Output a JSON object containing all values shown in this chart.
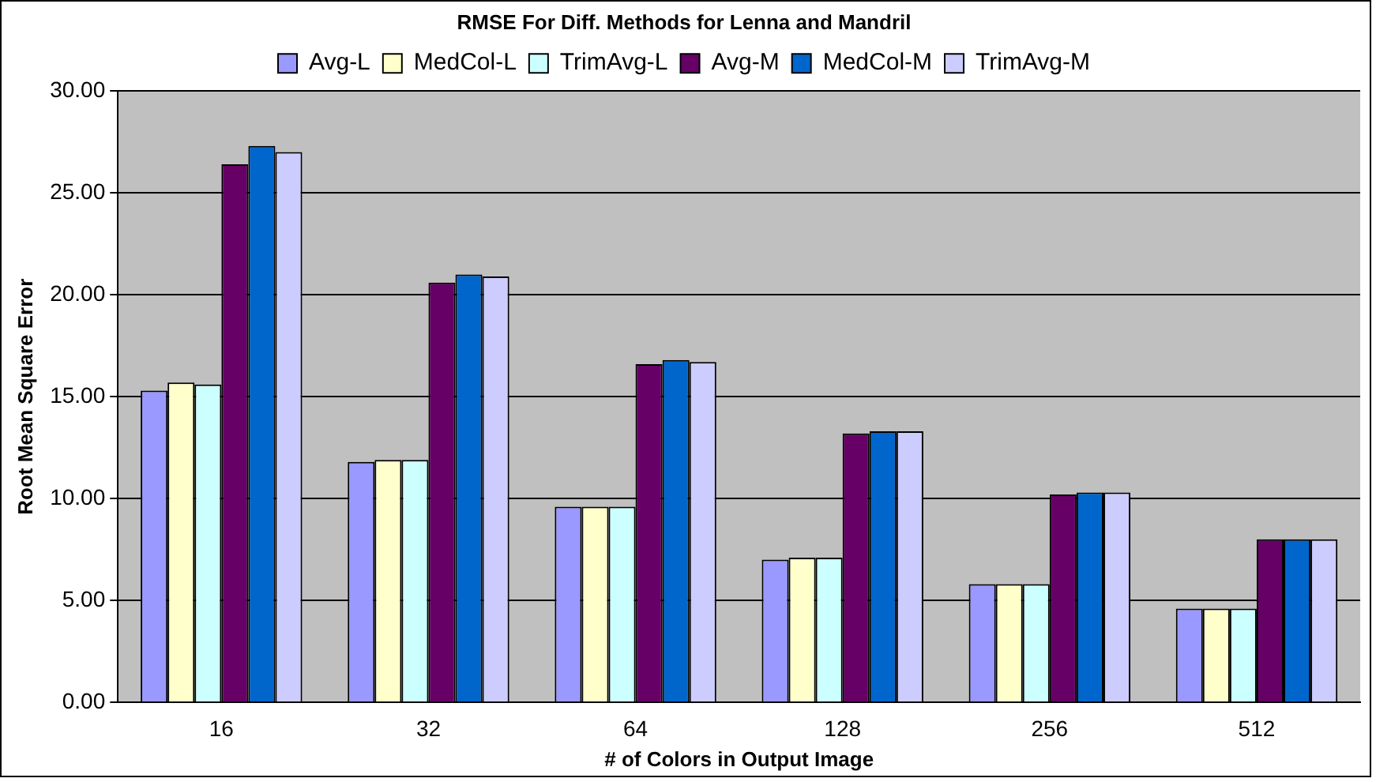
{
  "chart_data": {
    "type": "bar",
    "title": "RMSE For Diff. Methods for Lenna and Mandril",
    "xlabel": "# of Colors in Output Image",
    "ylabel": "Root Mean Square Error",
    "categories": [
      "16",
      "32",
      "64",
      "128",
      "256",
      "512"
    ],
    "series": [
      {
        "name": "Avg-L",
        "color": "#9999ff",
        "values": [
          15.3,
          11.8,
          9.6,
          7.0,
          5.8,
          4.6
        ]
      },
      {
        "name": "MedCol-L",
        "color": "#ffffcc",
        "values": [
          15.7,
          11.9,
          9.6,
          7.1,
          5.8,
          4.6
        ]
      },
      {
        "name": "TrimAvg-L",
        "color": "#ccffff",
        "values": [
          15.6,
          11.9,
          9.6,
          7.1,
          5.8,
          4.6
        ]
      },
      {
        "name": "Avg-M",
        "color": "#660066",
        "values": [
          26.4,
          20.6,
          16.6,
          13.2,
          10.2,
          8.0
        ]
      },
      {
        "name": "MedCol-M",
        "color": "#0066cc",
        "values": [
          27.3,
          21.0,
          16.8,
          13.3,
          10.3,
          8.0
        ]
      },
      {
        "name": "TrimAvg-M",
        "color": "#ccccff",
        "values": [
          27.0,
          20.9,
          16.7,
          13.3,
          10.3,
          8.0
        ]
      }
    ],
    "ylim": [
      0,
      30
    ],
    "yticks": [
      {
        "value": 0,
        "label": "0.00"
      },
      {
        "value": 5,
        "label": "5.00"
      },
      {
        "value": 10,
        "label": "10.00"
      },
      {
        "value": 15,
        "label": "15.00"
      },
      {
        "value": 20,
        "label": "20.00"
      },
      {
        "value": 25,
        "label": "25.00"
      },
      {
        "value": 30,
        "label": "30.00"
      }
    ],
    "grid": "y",
    "legend": "top"
  }
}
